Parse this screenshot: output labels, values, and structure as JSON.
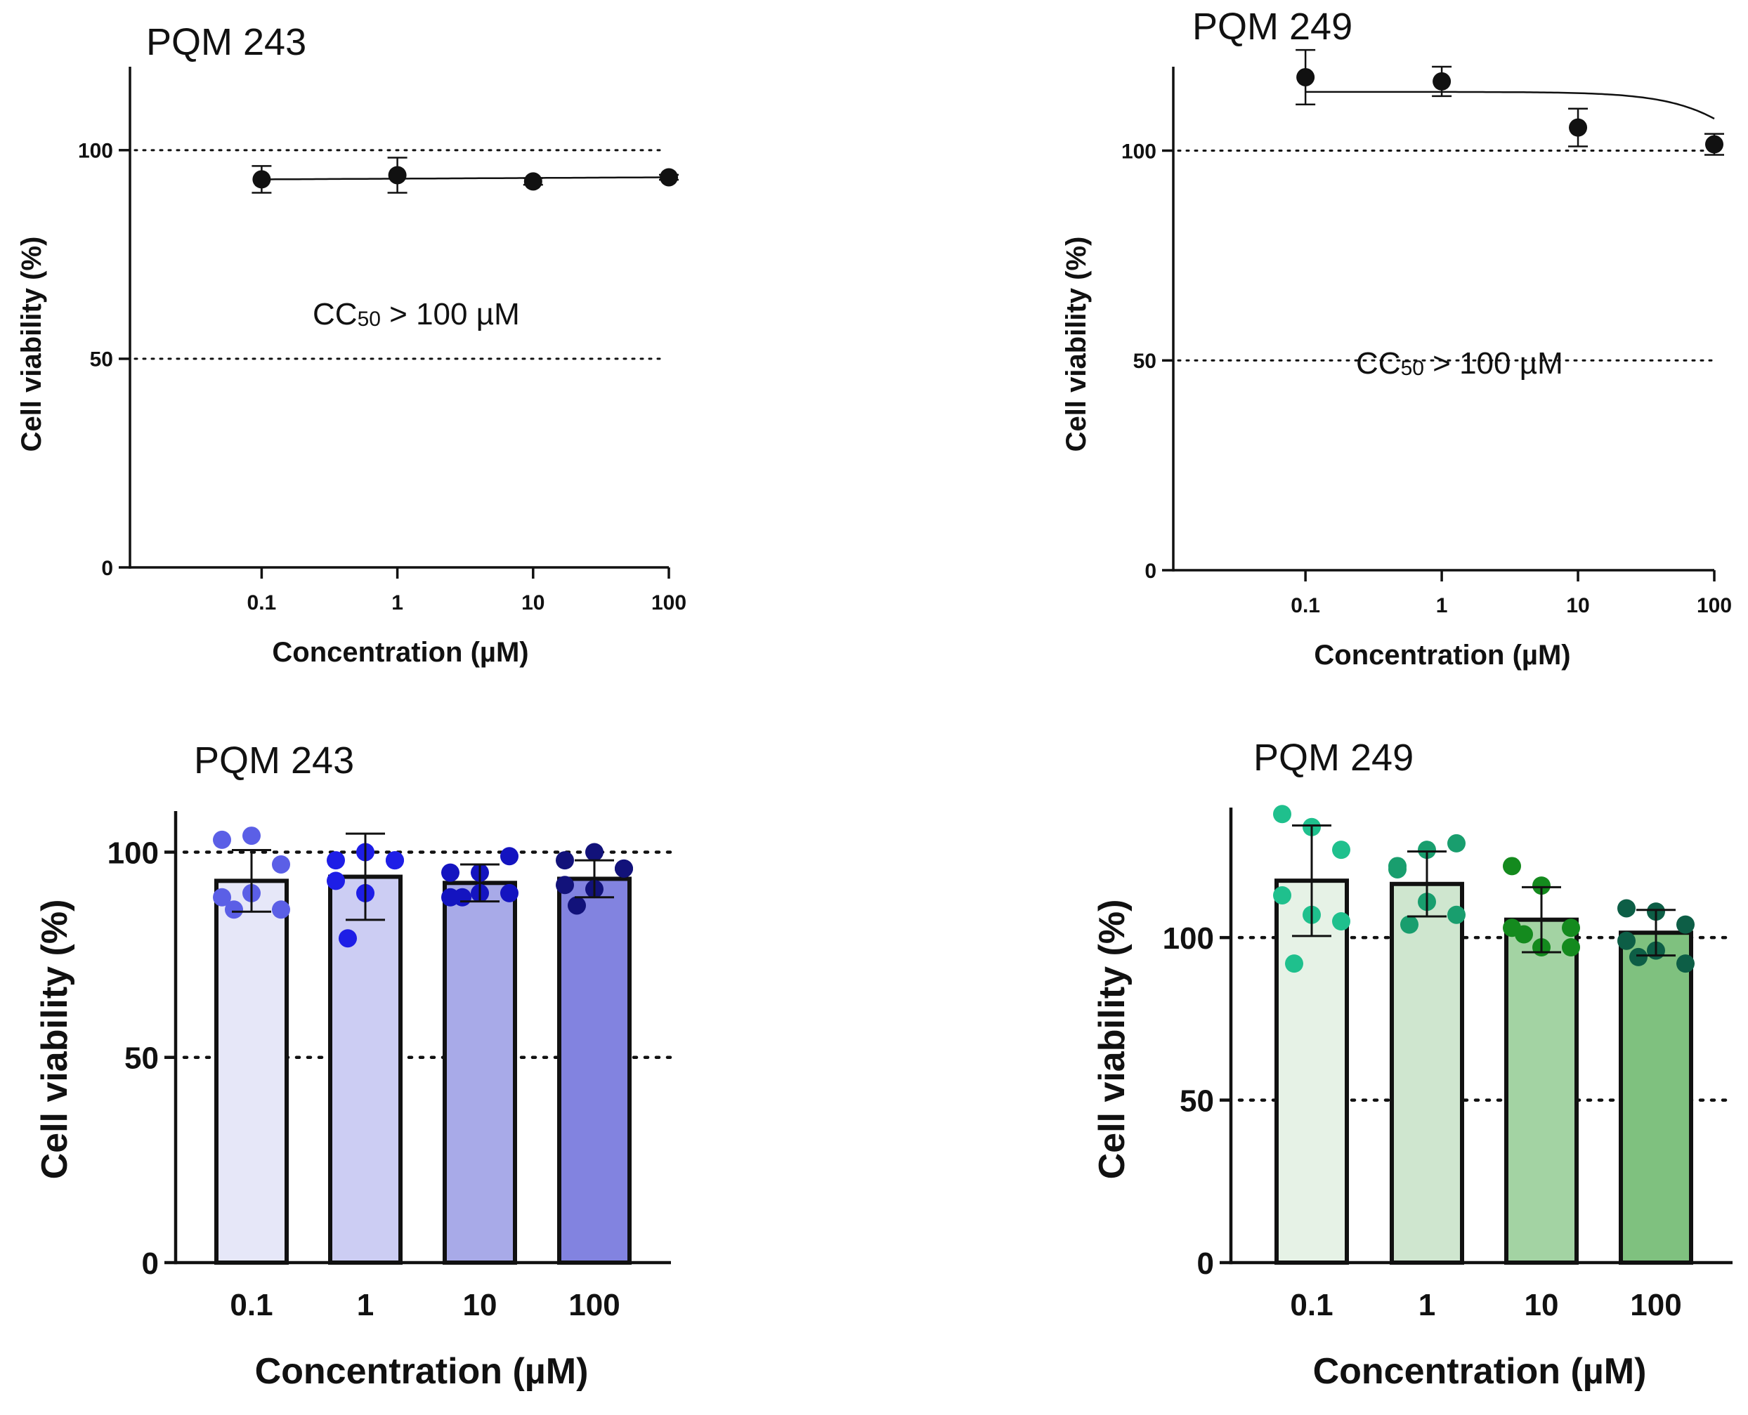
{
  "chart_data": [
    {
      "type": "scatter",
      "title": "PQM 243",
      "xlabel": "Concentration (µM)",
      "ylabel": "Cell viability (%)",
      "xscale": "log",
      "categories": [
        "0.1",
        "1",
        "10",
        "100"
      ],
      "x": [
        0.1,
        1,
        10,
        100
      ],
      "y": [
        93,
        94,
        92.5,
        93.5
      ],
      "error": [
        3.2,
        4.2,
        0.8,
        0.6
      ],
      "yticks": [
        "0",
        "50",
        "100"
      ],
      "ylim": [
        0,
        120
      ],
      "reference_lines": [
        50,
        100
      ],
      "annotation": {
        "main": "CC",
        "sub": "50",
        "rest": " > 100 µM"
      },
      "fit": "flat"
    },
    {
      "type": "scatter",
      "title": "PQM 249",
      "xlabel": "Concentration (µM)",
      "ylabel": "Cell viability (%)",
      "xscale": "log",
      "categories": [
        "0.1",
        "1",
        "10",
        "100"
      ],
      "x": [
        0.1,
        1,
        10,
        100
      ],
      "y": [
        117.5,
        116.5,
        105.5,
        101.5
      ],
      "error": [
        6.5,
        3.5,
        4.5,
        2.5
      ],
      "yticks": [
        "0",
        "50",
        "100"
      ],
      "ylim": [
        0,
        120
      ],
      "reference_lines": [
        50,
        100
      ],
      "annotation": {
        "main": "CC",
        "sub": "50",
        "rest": " > 100 µM"
      },
      "fit": "sigmoid"
    },
    {
      "type": "bar",
      "title": "PQM 243",
      "xlabel": "Concentration (µM)",
      "ylabel": "Cell viability (%)",
      "categories": [
        "0.1",
        "1",
        "10",
        "100"
      ],
      "values": [
        93,
        94,
        92.5,
        93.5
      ],
      "error": [
        7.5,
        10.5,
        4.5,
        4.5
      ],
      "points": [
        [
          103,
          104,
          97,
          89,
          90,
          86,
          86
        ],
        [
          98,
          100,
          98,
          93,
          90,
          98,
          79
        ],
        [
          95,
          95,
          99,
          89,
          90,
          90,
          89
        ],
        [
          98,
          100,
          96,
          92,
          91,
          96,
          87
        ]
      ],
      "bar_colors": [
        "#e6e7f8",
        "#cccdf3",
        "#a8aae8",
        "#8283e0"
      ],
      "point_colors": [
        "#5b5fe6",
        "#1e1ee6",
        "#1414c0",
        "#12127a"
      ],
      "yticks": [
        "0",
        "50",
        "100"
      ],
      "ylim": [
        0,
        110
      ],
      "reference_lines": [
        50,
        100
      ]
    },
    {
      "type": "bar",
      "title": "PQM 249",
      "xlabel": "Concentration (µM)",
      "ylabel": "Cell viability (%)",
      "categories": [
        "0.1",
        "1",
        "10",
        "100"
      ],
      "values": [
        117.5,
        116.5,
        105.5,
        101.5
      ],
      "error": [
        17,
        10,
        10,
        7
      ],
      "points": [
        [
          138,
          134,
          127,
          113,
          107,
          105,
          92
        ],
        [
          121,
          127,
          129,
          122,
          111,
          107,
          104
        ],
        [
          122,
          116,
          103,
          103,
          97,
          97,
          101
        ],
        [
          109,
          108,
          104,
          99,
          96,
          92,
          94
        ]
      ],
      "bar_colors": [
        "#e6f2e6",
        "#cfe6cf",
        "#a3d3a3",
        "#7fc17f"
      ],
      "point_colors": [
        "#1fc08d",
        "#199e6e",
        "#148a1e",
        "#0d5e46"
      ],
      "yticks": [
        "0",
        "50",
        "100"
      ],
      "ylim": [
        0,
        140
      ],
      "reference_lines": [
        50,
        100
      ]
    }
  ]
}
